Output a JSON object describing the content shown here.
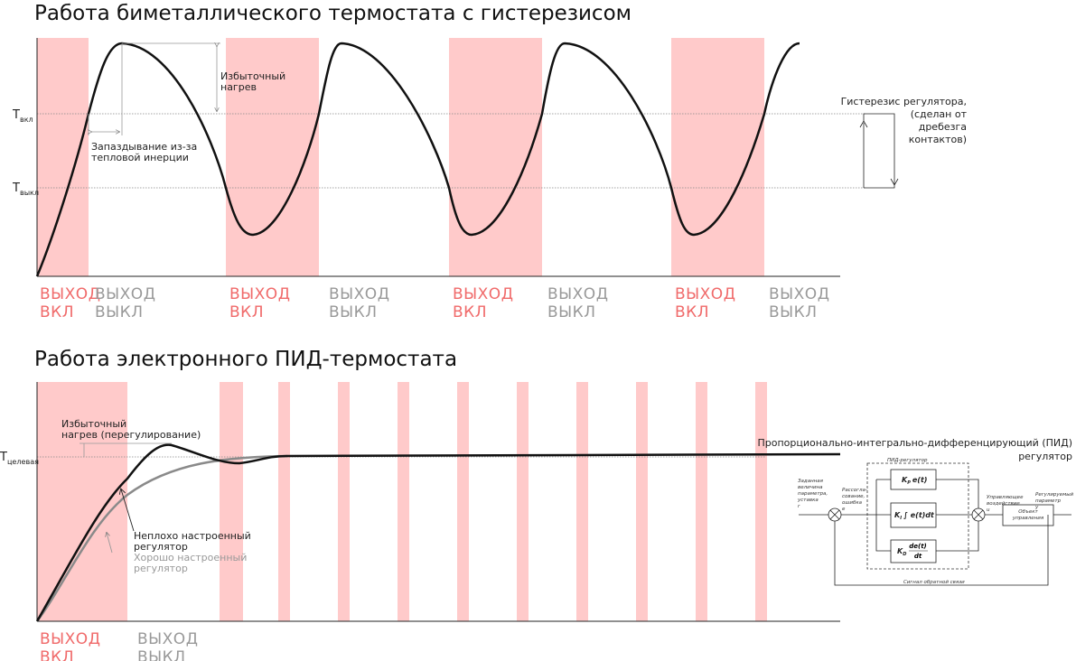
{
  "top": {
    "title": "Работа биметаллического термостата с гистерезисом",
    "t_on": {
      "main": "T",
      "sub": "вкл"
    },
    "t_off": {
      "main": "T",
      "sub": "выкл"
    },
    "overheat": [
      "Избыточный",
      "нагрев"
    ],
    "delay": [
      "Запаздывание из-за",
      "тепловой инерции"
    ],
    "hysteresis": [
      "Гистерезис регулятора,",
      "(сделан от",
      "дребезга",
      "контактов)"
    ],
    "outputs": [
      [
        "ВЫХОД",
        "ВКЛ"
      ],
      [
        "ВЫХОД",
        "ВЫКЛ"
      ],
      [
        "ВЫХОД",
        "ВКЛ"
      ],
      [
        "ВЫХОД",
        "ВЫКЛ"
      ],
      [
        "ВЫХОД",
        "ВКЛ"
      ],
      [
        "ВЫХОД",
        "ВЫКЛ"
      ],
      [
        "ВЫХОД",
        "ВКЛ"
      ],
      [
        "ВЫХОД",
        "ВЫКЛ"
      ]
    ]
  },
  "bottom": {
    "title": "Работа электронного ПИД-термостата",
    "t_target": {
      "main": "T",
      "sub": "целевая"
    },
    "overshoot": [
      "Избыточный",
      "нагрев (перегулирование)"
    ],
    "fair_tuned": [
      "Неплохо настроенный",
      "регулятор"
    ],
    "good_tuned": [
      "Хорошо настроенный",
      "регулятор"
    ],
    "outputs": [
      [
        "ВЫХОД",
        "ВКЛ"
      ],
      [
        "ВЫХОД",
        "ВЫКЛ"
      ]
    ],
    "pid": {
      "title": [
        "Пропорционально-интегрально-дифференцирующий (ПИД)",
        "регулятор"
      ],
      "box_label": "ПИД-регулятор",
      "setpoint": [
        "Заданная",
        "величина",
        "параметра,",
        "уставка",
        "r"
      ],
      "error": [
        "Рассогла-",
        "сование,",
        "ошибка",
        "e"
      ],
      "control": [
        "Управляющее",
        "воздействие",
        "u"
      ],
      "measured": [
        "Регулируемый",
        "параметр",
        "y"
      ],
      "plant": [
        "Объект",
        "управления"
      ],
      "feedback": "Сигнал обратной связи",
      "kp": {
        "main": "K",
        "sub": "P",
        "expr": "e(t)"
      },
      "ki": {
        "main": "K",
        "sub": "I",
        "expr": "∫ e(t)dt"
      },
      "kd": {
        "main": "K",
        "sub": "D",
        "num": "de(t)",
        "den": "dt"
      }
    }
  }
}
